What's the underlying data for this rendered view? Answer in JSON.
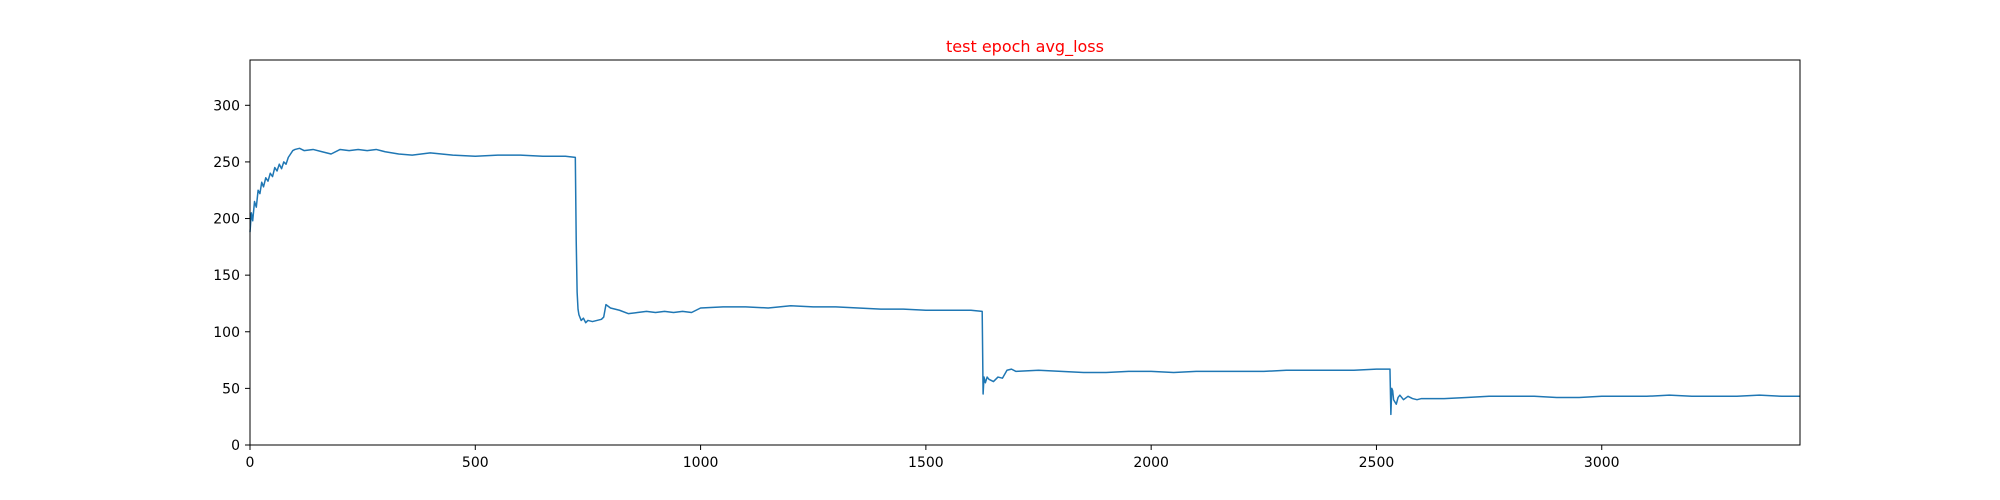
{
  "chart_data": {
    "type": "line",
    "title": "test epoch avg_loss",
    "title_color": "#ff0000",
    "xlabel": "",
    "ylabel": "",
    "xlim": [
      0,
      3440
    ],
    "ylim": [
      0,
      340
    ],
    "grid": false,
    "x_ticks": [
      0,
      500,
      1000,
      1500,
      2000,
      2500,
      3000
    ],
    "x_tick_labels": [
      "0",
      "500",
      "1000",
      "1500",
      "2000",
      "2500",
      "3000"
    ],
    "y_ticks": [
      0,
      50,
      100,
      150,
      200,
      250,
      300
    ],
    "y_tick_labels": [
      "0",
      "50",
      "100",
      "150",
      "200",
      "250",
      "300"
    ],
    "series": [
      {
        "name": "avg_loss",
        "color": "#1f77b4",
        "x": [
          0,
          3,
          6,
          10,
          14,
          18,
          22,
          26,
          30,
          35,
          40,
          45,
          50,
          55,
          60,
          65,
          70,
          75,
          80,
          85,
          90,
          95,
          100,
          110,
          120,
          140,
          160,
          180,
          200,
          220,
          240,
          260,
          280,
          300,
          330,
          360,
          400,
          450,
          500,
          550,
          600,
          650,
          700,
          722,
          724,
          726,
          728,
          730,
          735,
          740,
          745,
          750,
          760,
          770,
          780,
          785,
          790,
          800,
          820,
          840,
          860,
          880,
          900,
          920,
          940,
          960,
          980,
          1000,
          1050,
          1100,
          1150,
          1200,
          1250,
          1300,
          1350,
          1400,
          1450,
          1500,
          1550,
          1600,
          1625,
          1627,
          1629,
          1632,
          1636,
          1640,
          1645,
          1650,
          1655,
          1660,
          1670,
          1680,
          1690,
          1700,
          1750,
          1800,
          1850,
          1900,
          1950,
          2000,
          2050,
          2100,
          2150,
          2200,
          2250,
          2300,
          2350,
          2400,
          2450,
          2500,
          2530,
          2532,
          2534,
          2536,
          2538,
          2541,
          2544,
          2548,
          2552,
          2556,
          2560,
          2570,
          2580,
          2590,
          2600,
          2650,
          2700,
          2750,
          2800,
          2850,
          2900,
          2950,
          3000,
          3050,
          3100,
          3150,
          3200,
          3250,
          3300,
          3350,
          3400,
          3440
        ],
        "values": [
          188,
          205,
          198,
          215,
          210,
          225,
          222,
          232,
          228,
          236,
          233,
          240,
          237,
          245,
          242,
          248,
          244,
          250,
          248,
          254,
          257,
          260,
          261,
          262,
          260,
          261,
          259,
          257,
          261,
          260,
          261,
          260,
          261,
          259,
          257,
          256,
          258,
          256,
          255,
          256,
          256,
          255,
          255,
          254,
          180,
          135,
          120,
          115,
          110,
          112,
          108,
          110,
          109,
          110,
          111,
          113,
          124,
          121,
          119,
          116,
          117,
          118,
          117,
          118,
          117,
          118,
          117,
          121,
          122,
          122,
          121,
          123,
          122,
          122,
          121,
          120,
          120,
          119,
          119,
          119,
          118,
          45,
          60,
          55,
          60,
          58,
          57,
          56,
          58,
          60,
          59,
          66,
          67,
          65,
          66,
          65,
          64,
          64,
          65,
          65,
          64,
          65,
          65,
          65,
          65,
          66,
          66,
          66,
          66,
          67,
          67,
          27,
          50,
          48,
          40,
          38,
          36,
          42,
          44,
          42,
          40,
          43,
          41,
          40,
          41,
          41,
          42,
          43,
          43,
          43,
          42,
          42,
          43,
          43,
          43,
          44,
          43,
          43,
          43,
          44,
          43,
          43
        ]
      }
    ]
  }
}
